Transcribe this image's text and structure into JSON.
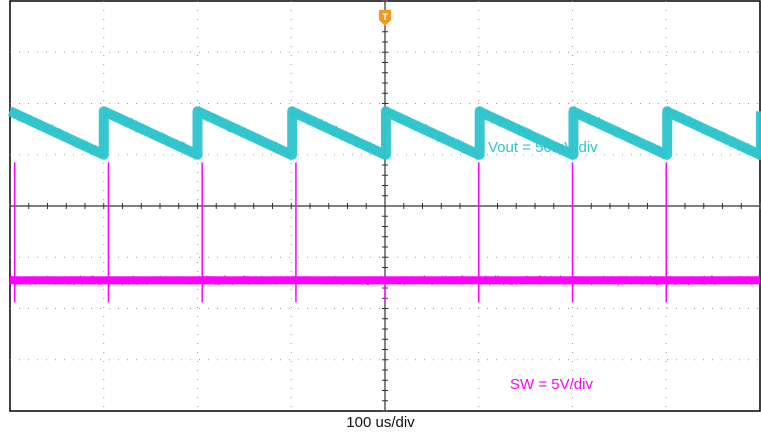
{
  "chart_data": {
    "type": "line",
    "xlabel": "100 us/div",
    "grid": true,
    "divisions": {
      "x": 8,
      "y": 8
    },
    "trigger_marker": "T",
    "series": [
      {
        "name": "Vout = 50mV/div",
        "color": "#2ec4cc",
        "waveform": "sawtooth",
        "period_div": 1.0,
        "first_edge_div": 1.0,
        "ripple_high_div": 1.85,
        "ripple_low_div": 1.0
      },
      {
        "name": "SW = 5V/div",
        "color": "#ff00ff",
        "waveform": "pulse",
        "baseline_div": -1.45,
        "spike_high_div": 0.85,
        "spike_positions_div": [
          0.05,
          1.05,
          2.05,
          3.05,
          5.0,
          6.0,
          7.0
        ],
        "dip_positions_div": [
          0.05,
          1.05,
          2.05,
          3.05,
          4.0,
          5.0,
          6.0,
          7.0
        ]
      }
    ]
  }
}
